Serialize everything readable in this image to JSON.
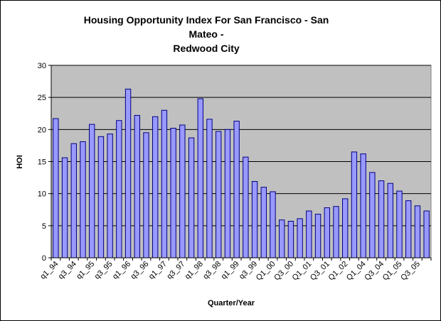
{
  "chart_data": {
    "type": "bar",
    "title_line1": "Housing Opportunity Index For San Francisco - San Mateo -",
    "title_line2": "Redwood City",
    "xlabel": "Quarter/Year",
    "ylabel": "HOI",
    "ylim": [
      0,
      30
    ],
    "yticks": [
      0,
      5,
      10,
      15,
      20,
      25,
      30
    ],
    "grid": true,
    "legend": "none",
    "colors": {
      "bar_fill": "#9999ff",
      "bar_stroke": "#000080",
      "plot_bg": "#c0c0c0"
    },
    "categories": [
      "q1_94",
      "q2_94",
      "q3_94",
      "q4_94",
      "q1_95",
      "q2_95",
      "q3_95",
      "q4_95",
      "q1_96",
      "q2_96",
      "q3_96",
      "q4_96",
      "q1_97",
      "q2_97",
      "q3_97",
      "q4_97",
      "q1_98",
      "q2_98",
      "q3_98",
      "q4_98",
      "q1_99",
      "q2_99",
      "q3_99",
      "q4_99",
      "Q1_00",
      "Q2_00",
      "Q3_00",
      "Q4_00",
      "Q1_01",
      "Q2_01",
      "Q3_01",
      "Q4_01",
      "Q1_02",
      "Q2_02",
      "Q1_04",
      "Q2_04",
      "Q3_04",
      "Q4_04",
      "Q1_05",
      "Q2_05",
      "Q3_05",
      "Q4_05"
    ],
    "tick_labels": [
      "q1_94",
      "q3_94",
      "q1_95",
      "q3_95",
      "q1_96",
      "q3_96",
      "q1_97",
      "q3_97",
      "q1_98",
      "q3_98",
      "q1_99",
      "q3_99",
      "Q1_00",
      "Q3_00",
      "Q1_01",
      "Q3_01",
      "Q1_02",
      "Q1_04",
      "Q3_04",
      "Q1_05",
      "Q3_05"
    ],
    "values": [
      21.7,
      15.6,
      17.8,
      18.1,
      20.8,
      18.9,
      19.3,
      21.4,
      26.3,
      22.2,
      19.5,
      22.0,
      23.0,
      20.2,
      20.7,
      18.7,
      24.8,
      21.6,
      19.7,
      20.0,
      21.3,
      15.7,
      11.9,
      11.0,
      10.3,
      5.9,
      5.7,
      6.1,
      7.3,
      6.8,
      7.8,
      8.0,
      9.2,
      16.5,
      16.2,
      13.3,
      12.0,
      11.6,
      10.4,
      8.9,
      8.1,
      7.3
    ]
  }
}
